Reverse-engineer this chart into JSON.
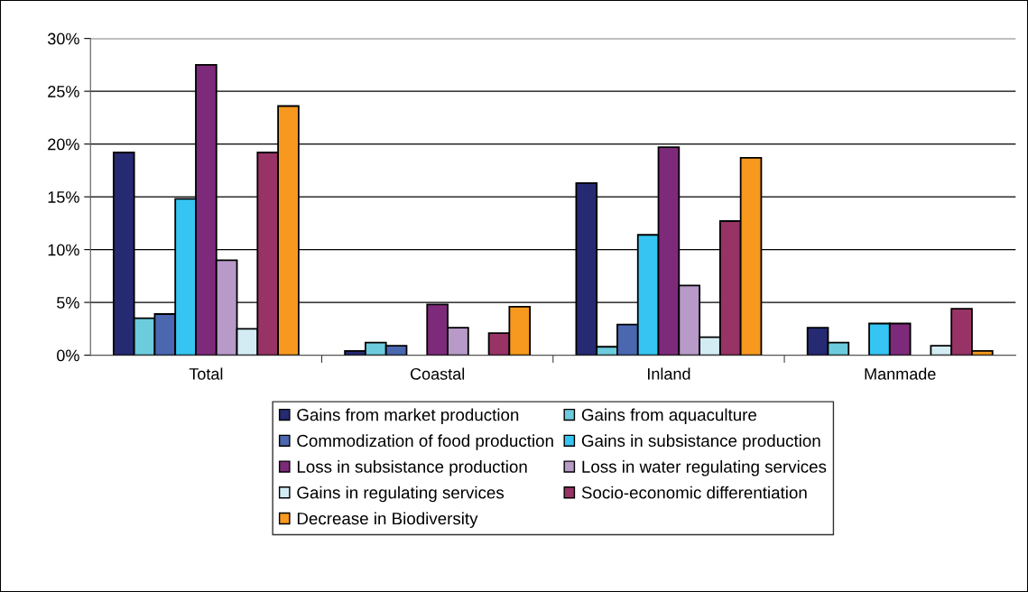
{
  "chart_data": {
    "type": "bar",
    "categories": [
      "Total",
      "Coastal",
      "Inland",
      "Manmade"
    ],
    "series": [
      {
        "name": "Gains from market production",
        "color": "#262a72",
        "values": [
          19.2,
          0.4,
          16.3,
          2.6
        ]
      },
      {
        "name": "Gains from aquaculture",
        "color": "#6ccbdc",
        "values": [
          3.5,
          1.2,
          0.8,
          1.2
        ]
      },
      {
        "name": "Commodization of food production",
        "color": "#4a67b0",
        "values": [
          3.9,
          0.9,
          2.9,
          null
        ]
      },
      {
        "name": "Gains in subsistance production",
        "color": "#36c5f2",
        "values": [
          14.8,
          null,
          11.4,
          3.0
        ]
      },
      {
        "name": "Loss in subsistance production",
        "color": "#7e2a7b",
        "values": [
          27.5,
          4.8,
          19.7,
          3.0
        ]
      },
      {
        "name": "Loss in water regulating services",
        "color": "#b79ac8",
        "values": [
          9.0,
          2.6,
          6.6,
          null
        ]
      },
      {
        "name": "Gains in regulating services",
        "color": "#d3ecf4",
        "values": [
          2.5,
          null,
          1.7,
          0.9
        ]
      },
      {
        "name": "Socio-economic differentiation",
        "color": "#983366",
        "values": [
          19.2,
          2.1,
          12.7,
          4.4
        ]
      },
      {
        "name": "Decrease in Biodiversity",
        "color": "#f7991f",
        "values": [
          23.6,
          4.6,
          18.7,
          0.4
        ]
      }
    ],
    "ylim": [
      0,
      30
    ],
    "yticks": [
      {
        "value": 0,
        "label": "0%"
      },
      {
        "value": 5,
        "label": "5%"
      },
      {
        "value": 10,
        "label": "10%"
      },
      {
        "value": 15,
        "label": "15%"
      },
      {
        "value": 20,
        "label": "20%"
      },
      {
        "value": 25,
        "label": "25%"
      },
      {
        "value": 30,
        "label": "30%"
      }
    ],
    "grid": "y",
    "legend": "bottom"
  }
}
